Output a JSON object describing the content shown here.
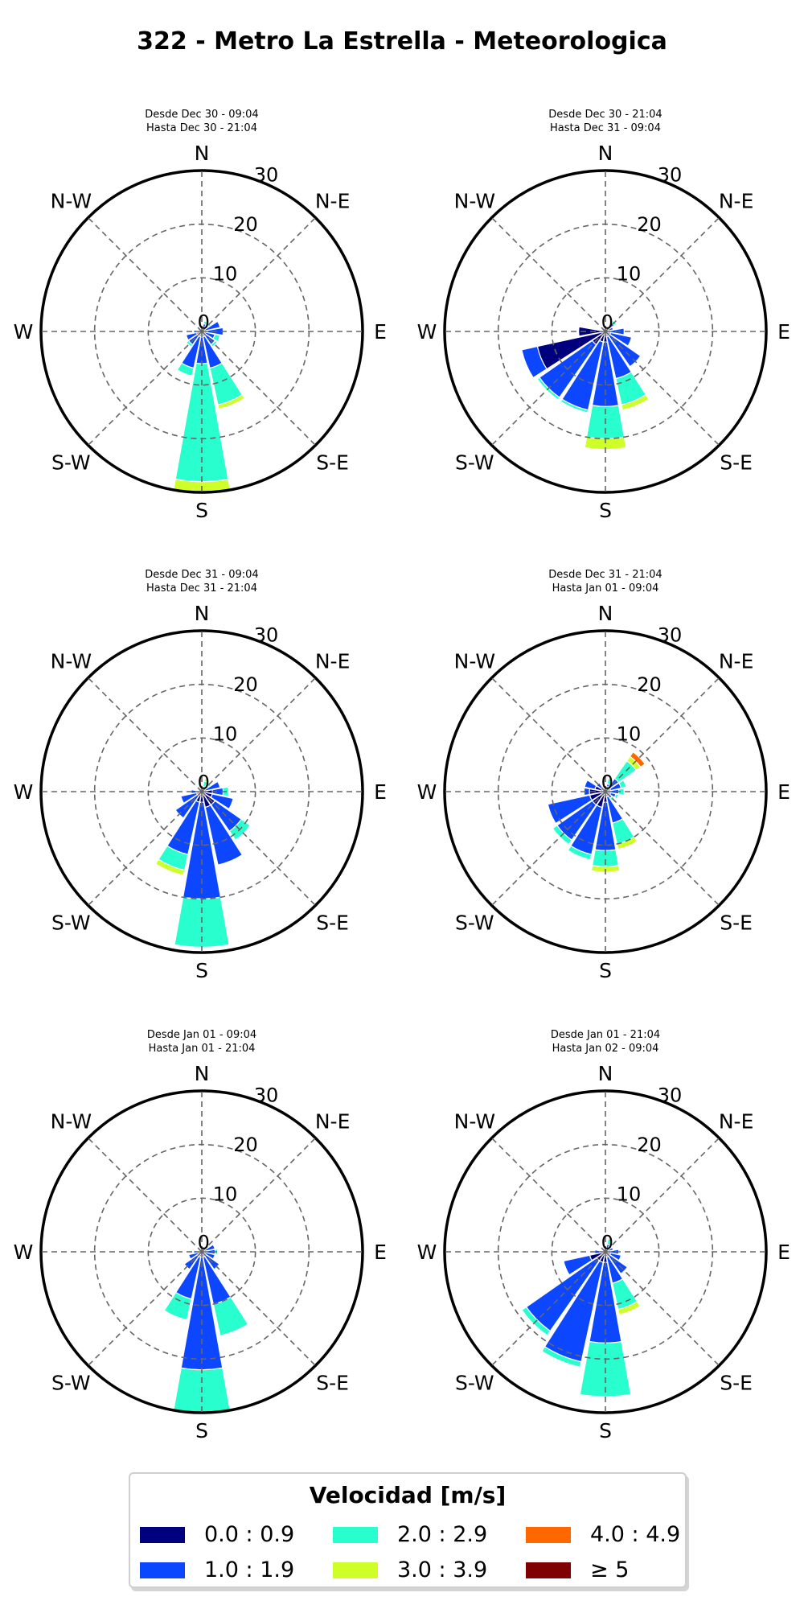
{
  "title": "322 - Metro La Estrella - Meteorologica",
  "chart_data": {
    "type": "windrose",
    "directions": [
      "N",
      "N-E",
      "E",
      "S-E",
      "S",
      "S-W",
      "W",
      "N-W"
    ],
    "radial_ticks": [
      "0",
      "10",
      "20",
      "30"
    ],
    "rmax": 30,
    "bin_colors": [
      "#00007f",
      "#0c47ff",
      "#29ffce",
      "#ceff29",
      "#ff6800",
      "#7f0000"
    ],
    "sectors_note": "16 sectors starting at N, clockwise; each value is [bin0..bin5] cumulative-stacked counts",
    "legend": {
      "title": "Velocidad [m/s]",
      "items": [
        "0.0 : 0.9",
        "1.0 : 1.9",
        "2.0 : 2.9",
        "3.0 : 3.9",
        "4.0 : 4.9",
        "≥ 5"
      ]
    },
    "panels": [
      {
        "line1": "Desde Dec 30 - 09:04",
        "line2": "Hasta Dec 30 - 21:04",
        "sectors": [
          [
            0.5,
            0,
            0,
            0,
            0,
            0
          ],
          [
            0.5,
            1,
            0.5,
            0,
            0,
            0
          ],
          [
            0.5,
            1,
            0.5,
            0.2,
            0,
            0
          ],
          [
            0.5,
            3,
            0,
            0,
            0,
            0
          ],
          [
            1,
            3,
            0,
            0,
            0,
            0
          ],
          [
            0.5,
            2,
            1,
            0,
            0,
            0
          ],
          [
            1,
            2,
            0.5,
            0,
            0,
            0
          ],
          [
            1,
            6,
            7,
            0.8,
            0,
            0
          ],
          [
            1,
            5,
            22,
            2,
            0,
            0
          ],
          [
            1,
            6,
            1.5,
            0,
            0,
            0
          ],
          [
            1,
            2,
            0.5,
            0,
            0,
            0
          ],
          [
            1,
            2,
            0,
            0,
            0,
            0
          ],
          [
            0.5,
            1,
            0,
            0,
            0,
            0
          ],
          [
            0,
            0,
            0,
            0,
            0,
            0
          ],
          [
            0,
            0,
            0,
            0,
            0,
            0
          ],
          [
            0,
            0,
            0,
            0,
            0,
            0
          ]
        ]
      },
      {
        "line1": "Desde Dec 30 - 21:04",
        "line2": "Hasta Dec 31 - 09:04",
        "sectors": [
          [
            0,
            0,
            0,
            0,
            0,
            0
          ],
          [
            0.5,
            0,
            0,
            0,
            0,
            0
          ],
          [
            0.5,
            1.5,
            0.5,
            0,
            0,
            0
          ],
          [
            0.5,
            1,
            0,
            0,
            0,
            0
          ],
          [
            0.5,
            3,
            0,
            0,
            0,
            0
          ],
          [
            1,
            4,
            0,
            0,
            0,
            0
          ],
          [
            1,
            7,
            0,
            0,
            0,
            0
          ],
          [
            1,
            8,
            5,
            1,
            0,
            0
          ],
          [
            2,
            12,
            6,
            2,
            0,
            0
          ],
          [
            2,
            13,
            0.5,
            0,
            0,
            0
          ],
          [
            3,
            12,
            0.5,
            0,
            0,
            0
          ],
          [
            13,
            3,
            0,
            0,
            0,
            0
          ],
          [
            5,
            0,
            0,
            0,
            0,
            0
          ],
          [
            0,
            0,
            0,
            0,
            0,
            0
          ],
          [
            0,
            0,
            0,
            0,
            0,
            0
          ],
          [
            0,
            0,
            0,
            0,
            0,
            0
          ]
        ]
      },
      {
        "line1": "Desde Dec 31 - 09:04",
        "line2": "Hasta Dec 31 - 21:04",
        "sectors": [
          [
            0.5,
            0,
            0,
            0,
            0,
            0
          ],
          [
            0.5,
            0.5,
            1,
            0.5,
            0,
            0
          ],
          [
            0.5,
            1,
            0.5,
            0,
            0,
            0
          ],
          [
            0.5,
            3,
            0,
            0,
            0,
            0
          ],
          [
            2,
            2,
            1,
            0,
            0,
            0
          ],
          [
            2,
            4,
            0,
            0,
            0,
            0
          ],
          [
            3,
            6,
            2,
            0,
            0,
            0
          ],
          [
            3,
            11,
            0,
            0,
            0,
            0
          ],
          [
            2,
            18,
            9,
            0,
            0,
            0
          ],
          [
            2,
            10,
            3,
            1,
            0,
            0
          ],
          [
            1,
            5,
            0,
            0,
            0,
            0
          ],
          [
            1,
            3,
            0,
            0,
            0,
            0
          ],
          [
            1,
            1,
            0,
            0,
            0,
            0
          ],
          [
            0,
            0,
            0,
            0,
            0,
            0
          ],
          [
            0,
            0,
            0,
            0,
            0,
            0
          ],
          [
            0,
            0,
            0,
            0,
            0,
            0
          ]
        ]
      },
      {
        "line1": "Desde Dec 31 - 21:04",
        "line2": "Hasta Jan 01 - 09:04",
        "sectors": [
          [
            0,
            0,
            0,
            0,
            0,
            0
          ],
          [
            1,
            0.5,
            1,
            0,
            0,
            0
          ],
          [
            1,
            2,
            4,
            1,
            1,
            0
          ],
          [
            1,
            2,
            1,
            0,
            0,
            0
          ],
          [
            0.5,
            2,
            1,
            0,
            0,
            0
          ],
          [
            1,
            1,
            0.5,
            0,
            0,
            0
          ],
          [
            0.5,
            1,
            0.5,
            0,
            0,
            0
          ],
          [
            1,
            5,
            4,
            1,
            0,
            0
          ],
          [
            2,
            9,
            3,
            1,
            0,
            0
          ],
          [
            3,
            9,
            1,
            0,
            0,
            0
          ],
          [
            3,
            8,
            1,
            0,
            0,
            0
          ],
          [
            3,
            8,
            0,
            0,
            0,
            0
          ],
          [
            3,
            1,
            0,
            0,
            0,
            0
          ],
          [
            2,
            2,
            0,
            0,
            0,
            0
          ],
          [
            1,
            1,
            0,
            0,
            0,
            0
          ],
          [
            0,
            0,
            0,
            0,
            0,
            0
          ]
        ]
      },
      {
        "line1": "Desde Jan 01 - 09:04",
        "line2": "Hasta Jan 01 - 21:04",
        "sectors": [
          [
            0.5,
            0,
            0,
            0,
            0,
            0
          ],
          [
            0.5,
            0.5,
            0,
            0,
            0,
            0
          ],
          [
            0.5,
            1,
            0,
            0,
            0,
            0
          ],
          [
            0.5,
            2,
            0,
            0,
            0,
            0
          ],
          [
            0.5,
            2,
            0.5,
            0,
            0,
            0
          ],
          [
            0.5,
            2,
            0,
            0,
            0,
            0
          ],
          [
            1,
            3,
            0,
            0,
            0,
            0
          ],
          [
            1,
            9,
            6,
            0,
            0,
            0
          ],
          [
            1,
            21,
            8,
            0,
            0,
            0
          ],
          [
            1,
            8,
            4,
            0,
            0,
            0
          ],
          [
            1,
            3,
            0,
            0,
            0,
            0
          ],
          [
            0.5,
            2,
            0,
            0,
            0,
            0
          ],
          [
            0.5,
            1,
            0,
            0,
            0,
            0
          ],
          [
            0,
            0,
            0,
            0,
            0,
            0
          ],
          [
            0,
            0,
            0,
            0,
            0,
            0
          ],
          [
            0,
            0,
            0,
            0,
            0,
            0
          ]
        ]
      },
      {
        "line1": "Desde Jan 01 - 21:04",
        "line2": "Hasta Jan 02 - 09:04",
        "sectors": [
          [
            0,
            0,
            0,
            0,
            0,
            0
          ],
          [
            0.5,
            1,
            1,
            0,
            0,
            0
          ],
          [
            0.5,
            0.5,
            0,
            0,
            0,
            0
          ],
          [
            0.5,
            1,
            0,
            0,
            0,
            0
          ],
          [
            0.5,
            2,
            0,
            0,
            0,
            0
          ],
          [
            1,
            2,
            0,
            0,
            0,
            0
          ],
          [
            1,
            4,
            0,
            0,
            0,
            0
          ],
          [
            1,
            5,
            5,
            1,
            0,
            0
          ],
          [
            2,
            15,
            10,
            0,
            0,
            0
          ],
          [
            2,
            19,
            1,
            0,
            0,
            0
          ],
          [
            2,
            16,
            1,
            0,
            0,
            0
          ],
          [
            3,
            5,
            0,
            0,
            0,
            0
          ],
          [
            1,
            1,
            0,
            0,
            0,
            0
          ],
          [
            0,
            0,
            0,
            0,
            0,
            0
          ],
          [
            0,
            0,
            0,
            0,
            0,
            0
          ],
          [
            0,
            0,
            0,
            0,
            0,
            0
          ]
        ]
      }
    ]
  }
}
